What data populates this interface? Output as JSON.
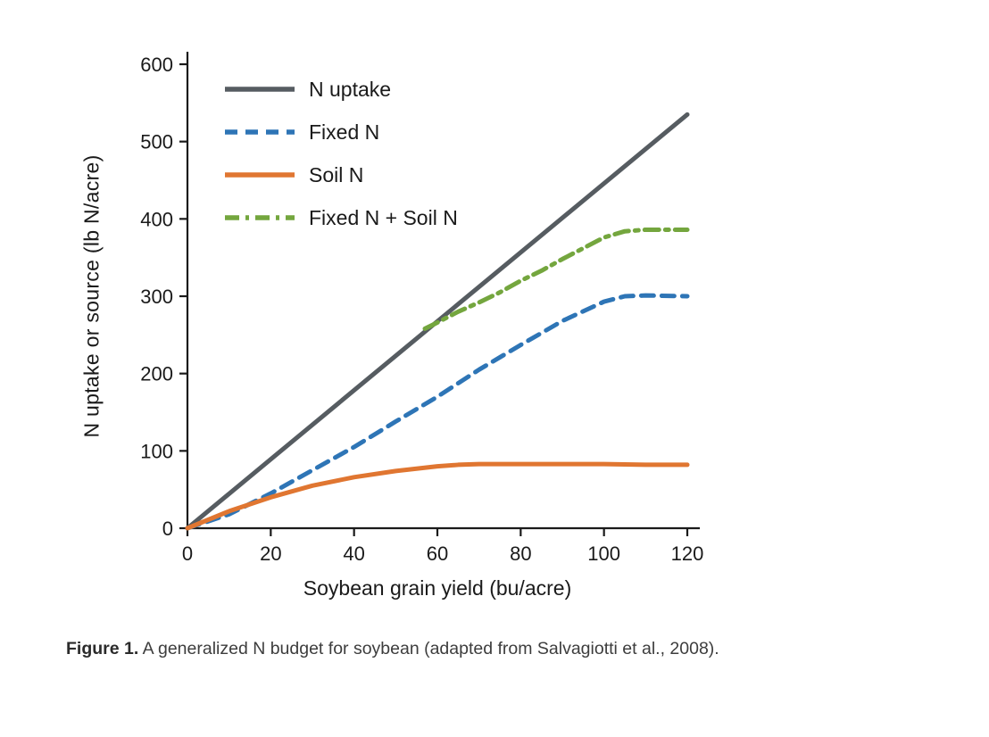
{
  "figure": {
    "caption_bold": "Figure 1.",
    "caption_text": " A generalized N budget for soybean (adapted from Salvagiotti et al., 2008)."
  },
  "chart_data": {
    "type": "line",
    "title": "",
    "xlabel": "Soybean grain yield (bu/acre)",
    "ylabel": "N uptake or source (lb N/acre)",
    "xlim": [
      0,
      120
    ],
    "ylim": [
      0,
      600
    ],
    "x_ticks": [
      0,
      20,
      40,
      60,
      80,
      100,
      120
    ],
    "y_ticks": [
      0,
      100,
      200,
      300,
      400,
      500,
      600
    ],
    "grid": false,
    "legend_position": "top-left-inside",
    "axis_color": "#1a1a1a",
    "series": [
      {
        "id": "n-uptake",
        "name": "N uptake",
        "color": "#565c61",
        "style": "solid",
        "width": 5,
        "x": [
          0,
          120
        ],
        "y": [
          0,
          535
        ]
      },
      {
        "id": "fixed-n",
        "name": "Fixed N",
        "color": "#2e75b6",
        "style": "dashed",
        "dash": "14 9",
        "width": 5,
        "x": [
          0,
          10,
          20,
          30,
          40,
          50,
          60,
          70,
          80,
          90,
          100,
          105,
          110,
          120
        ],
        "y": [
          0,
          18,
          45,
          75,
          105,
          138,
          170,
          205,
          237,
          268,
          293,
          300,
          301,
          300
        ]
      },
      {
        "id": "soil-n",
        "name": "Soil N",
        "color": "#e07631",
        "style": "solid",
        "width": 5,
        "x": [
          0,
          10,
          20,
          30,
          40,
          50,
          60,
          65,
          70,
          80,
          90,
          100,
          110,
          120
        ],
        "y": [
          0,
          22,
          40,
          55,
          66,
          74,
          80,
          82,
          83,
          83,
          83,
          83,
          82,
          82
        ]
      },
      {
        "id": "fixed-plus-soil-n",
        "name": "Fixed N + Soil N",
        "color": "#74a63e",
        "style": "dash-dot",
        "dash": "16 7 4 7",
        "width": 5,
        "x": [
          57,
          60,
          65,
          70,
          75,
          80,
          85,
          90,
          95,
          100,
          105,
          110,
          115,
          120
        ],
        "y": [
          258,
          266,
          280,
          292,
          305,
          320,
          333,
          348,
          362,
          376,
          384,
          386,
          386,
          386
        ]
      }
    ]
  }
}
